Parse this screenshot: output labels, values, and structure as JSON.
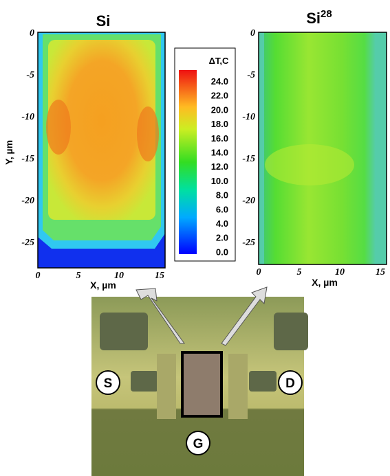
{
  "panels": [
    {
      "title": "Si",
      "x_label": "X, µm",
      "y_label": "Y, µm",
      "x_ticks": [
        "0",
        "5",
        "10",
        "15"
      ],
      "y_ticks": [
        "0",
        "-5",
        "-10",
        "-15",
        "-20",
        "-25"
      ]
    },
    {
      "title": "Si",
      "title_superscript": "28",
      "x_label": "X, µm",
      "x_ticks": [
        "0",
        "5",
        "10",
        "15"
      ],
      "y_ticks": [
        "0",
        "-5",
        "-10",
        "-15",
        "-20",
        "-25"
      ]
    }
  ],
  "colorbar": {
    "title": "ΔT,C",
    "ticks": [
      "24.0",
      "22.0",
      "20.0",
      "18.0",
      "16.0",
      "14.0",
      "12.0",
      "10.0",
      "8.0",
      "6.0",
      "4.0",
      "2.0",
      "0.0"
    ]
  },
  "photo": {
    "labels": [
      "S",
      "D",
      "G"
    ]
  }
}
